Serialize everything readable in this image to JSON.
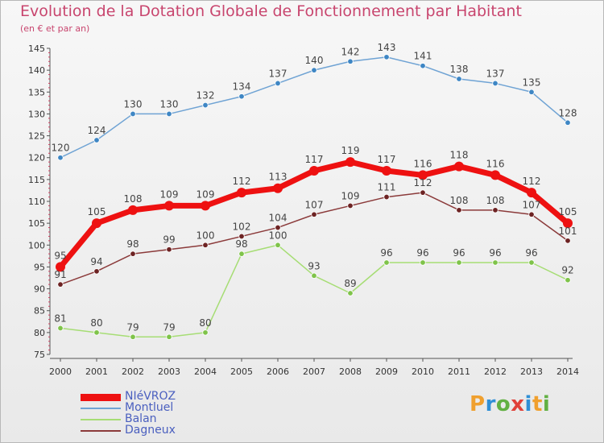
{
  "chart_data": {
    "type": "line",
    "title": "Evolution de la Dotation Globale de Fonctionnement par Habitant",
    "subtitle": "(en € et par an)",
    "x": [
      "2000",
      "2001",
      "2002",
      "2003",
      "2004",
      "2005",
      "2006",
      "2007",
      "2008",
      "2009",
      "2010",
      "2011",
      "2012",
      "2013",
      "2014"
    ],
    "ylim": [
      75,
      145
    ],
    "yticks": [
      75,
      80,
      85,
      90,
      95,
      100,
      105,
      110,
      115,
      120,
      125,
      130,
      135,
      140,
      145
    ],
    "grid": false,
    "legend_position": "bottom-left",
    "series": [
      {
        "name": "Montluel",
        "color": "#6fa3d4",
        "marker": "#3e86c4",
        "values": [
          120,
          124,
          130,
          130,
          132,
          134,
          137,
          140,
          142,
          143,
          141,
          138,
          137,
          135,
          128
        ]
      },
      {
        "name": "Balan",
        "color": "#a6dd74",
        "marker": "#7fc34a",
        "values": [
          81,
          80,
          79,
          79,
          80,
          98,
          100,
          93,
          89,
          96,
          96,
          96,
          96,
          96,
          92
        ]
      },
      {
        "name": "Dagneux",
        "color": "#8b3a3a",
        "marker": "#6d2323",
        "values": [
          91,
          94,
          98,
          99,
          100,
          102,
          104,
          107,
          109,
          111,
          112,
          108,
          108,
          107,
          101
        ]
      },
      {
        "name": "NIéVROZ",
        "color": "#ee1111",
        "marker": "#ee1111",
        "values": [
          95,
          105,
          108,
          109,
          109,
          112,
          113,
          117,
          119,
          117,
          116,
          118,
          116,
          112,
          105
        ]
      }
    ],
    "legend_order": [
      "NIéVROZ",
      "Montluel",
      "Balan",
      "Dagneux"
    ]
  },
  "logo": {
    "p": "P",
    "r": "r",
    "o": "o",
    "x": "x",
    "i1": "i",
    "t": "t",
    "i2": "i"
  }
}
